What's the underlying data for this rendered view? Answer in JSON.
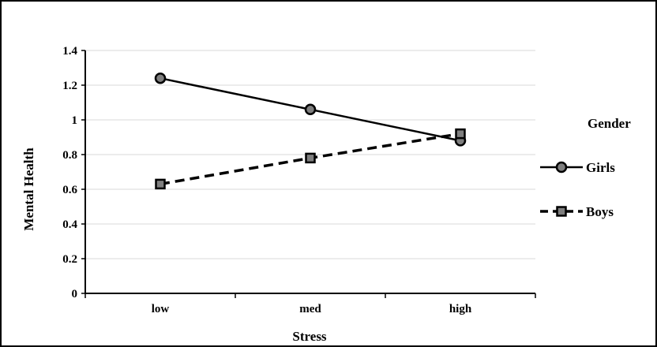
{
  "chart_data": {
    "type": "line",
    "xlabel": "Stress",
    "ylabel": "Mental Health",
    "categories": [
      "low",
      "med",
      "high"
    ],
    "ylim": [
      0,
      1.4
    ],
    "yticks": [
      "0",
      "0.2",
      "0.4",
      "0.6",
      "0.8",
      "1",
      "1.2",
      "1.4"
    ],
    "grid": true,
    "legend": {
      "title": "Gender",
      "placement": "right"
    },
    "series": [
      {
        "name": "Girls",
        "values": [
          1.24,
          1.06,
          0.88
        ],
        "marker": "circle",
        "line": "solid",
        "color": "#000000"
      },
      {
        "name": "Boys",
        "values": [
          0.63,
          0.78,
          0.92
        ],
        "marker": "square",
        "line": "dashed",
        "color": "#000000"
      }
    ]
  }
}
